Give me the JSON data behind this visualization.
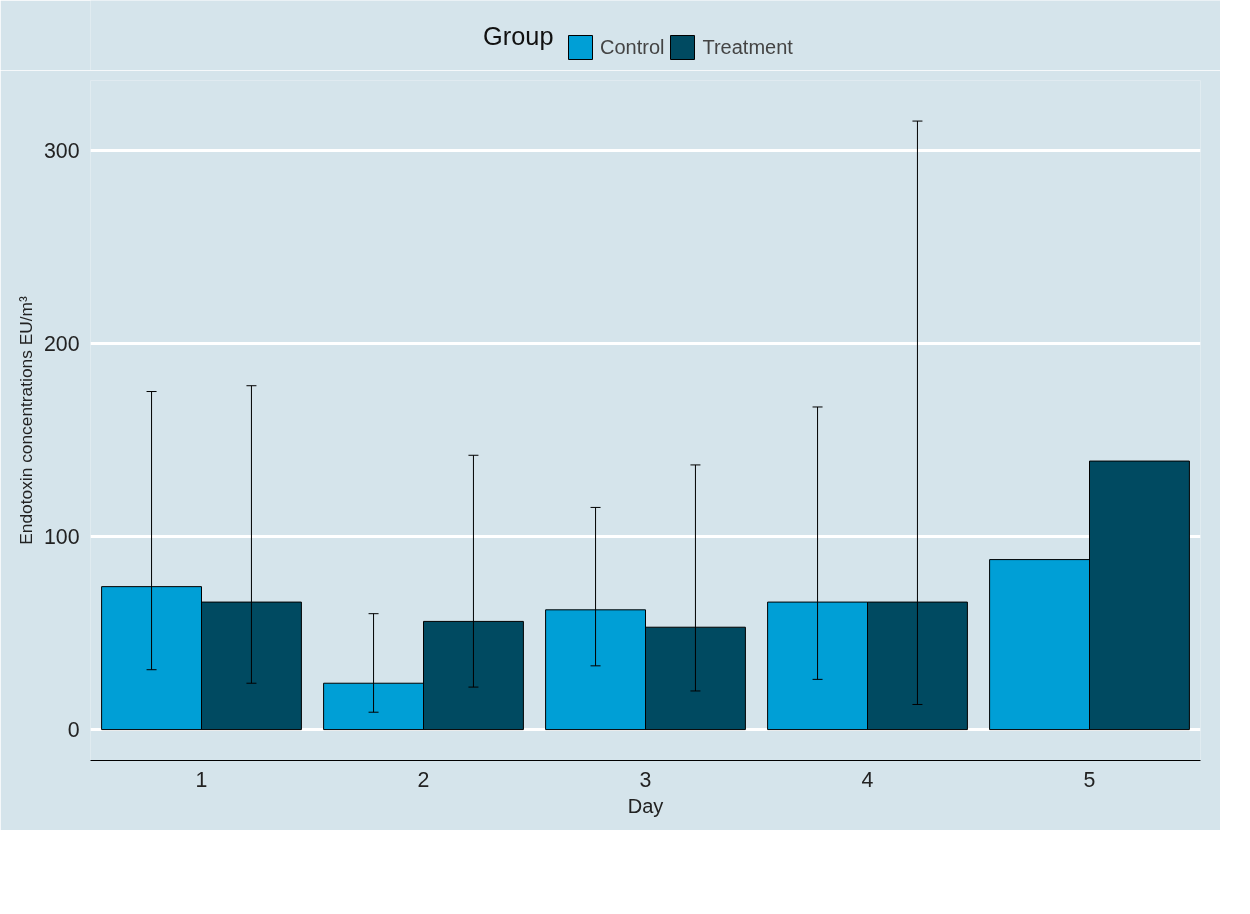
{
  "chart_data": {
    "type": "bar",
    "xlabel": "Day",
    "ylabel": "Endotoxin concentrations EU/m³",
    "legend_title": "Group",
    "categories": [
      "1",
      "2",
      "3",
      "4",
      "5"
    ],
    "series": [
      {
        "name": "Control",
        "color": "#009fd6",
        "values": [
          74,
          24,
          62,
          66,
          88
        ],
        "errors": [
          [
            31,
            175
          ],
          [
            9,
            60
          ],
          [
            33,
            115
          ],
          [
            26,
            167
          ],
          null
        ]
      },
      {
        "name": "Treatment",
        "color": "#004a61",
        "values": [
          66,
          56,
          53,
          66,
          139
        ],
        "errors": [
          [
            24,
            178
          ],
          [
            22,
            142
          ],
          [
            20,
            137
          ],
          [
            13,
            315
          ],
          null
        ]
      }
    ],
    "ylim": [
      -16,
      336
    ],
    "yticks": [
      0,
      100,
      200,
      300
    ],
    "grid": "y",
    "legend": "top"
  }
}
